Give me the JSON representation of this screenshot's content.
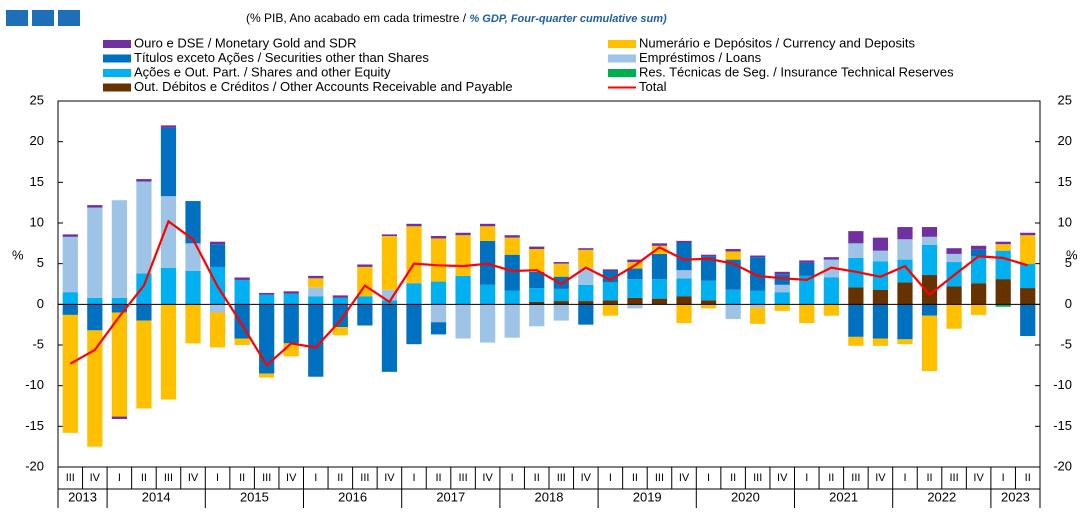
{
  "chart_data": {
    "type": "bar",
    "title": "(% PIB, Ano acabado em cada trimestre  / ",
    "subtitle": "% GDP, Four-quarter cumulative sum)",
    "ylabel": "%",
    "y2label": "%",
    "categories": [
      "III",
      "IV",
      "I",
      "II",
      "III",
      "IV",
      "I",
      "II",
      "III",
      "IV",
      "I",
      "II",
      "III",
      "IV",
      "I",
      "II",
      "III",
      "IV",
      "I",
      "II",
      "III",
      "IV",
      "I",
      "II",
      "III",
      "IV",
      "I",
      "II",
      "III",
      "IV",
      "I",
      "II",
      "III",
      "IV",
      "I",
      "II",
      "III",
      "IV",
      "I",
      "II"
    ],
    "year_groups": [
      {
        "label": "2013",
        "size": 2
      },
      {
        "label": "2014",
        "size": 4
      },
      {
        "label": "2015",
        "size": 4
      },
      {
        "label": "2016",
        "size": 4
      },
      {
        "label": "2017",
        "size": 4
      },
      {
        "label": "2018",
        "size": 4
      },
      {
        "label": "2019",
        "size": 4
      },
      {
        "label": "2020",
        "size": 4
      },
      {
        "label": "2021",
        "size": 4
      },
      {
        "label": "2022",
        "size": 4
      },
      {
        "label": "2023",
        "size": 2
      }
    ],
    "ylim": [
      -20,
      25
    ],
    "yticks": [
      -20,
      -15,
      -10,
      -5,
      0,
      5,
      10,
      15,
      20,
      25
    ],
    "y2lim": [
      -20,
      25
    ],
    "y2ticks": [
      -20,
      -15,
      -10,
      -5,
      0,
      5,
      10,
      15,
      20,
      25
    ],
    "grid": false,
    "series": [
      {
        "name": "Ouro e DSE / Monetary Gold and SDR",
        "color": "#7030a0",
        "values": [
          0.3,
          0.3,
          -0.3,
          0.3,
          0.3,
          0,
          0.3,
          0.3,
          0.2,
          0.3,
          0.3,
          0.3,
          0.3,
          0.2,
          0.3,
          0.3,
          0.3,
          0.3,
          0.3,
          0.3,
          0.2,
          0.2,
          0.2,
          0.3,
          0.3,
          0.2,
          0.2,
          0.3,
          0.2,
          0.3,
          0.3,
          0.3,
          1.5,
          1.6,
          1.5,
          1.2,
          0.7,
          0.5,
          0.3,
          0.3
        ]
      },
      {
        "name": "Numerário e Depósitos / Currency and Deposits",
        "color": "#ffc000",
        "values": [
          -14.5,
          -14.3,
          -12.8,
          -10.8,
          -11.7,
          -4.8,
          -4.3,
          -0.8,
          -0.5,
          -1.6,
          1.1,
          -1.0,
          3.6,
          6.6,
          7.0,
          5.3,
          5.0,
          1.8,
          2.1,
          2.8,
          1.6,
          2.2,
          -1.4,
          0.8,
          1.0,
          -2.3,
          -0.5,
          1.0,
          -2.0,
          -0.8,
          -2.3,
          -1.4,
          -1.1,
          -0.9,
          -0.6,
          -6.8,
          -3.0,
          -1.3,
          0.8,
          3.5
        ]
      },
      {
        "name": "Títulos exceto Ações / Securities other than Shares",
        "color": "#0070c0",
        "values": [
          -1.3,
          -3.2,
          -1.0,
          -2.0,
          8.4,
          5.2,
          2.8,
          -4.2,
          -8.5,
          -4.8,
          -8.9,
          -2.8,
          -2.6,
          -8.3,
          -4.9,
          -1.5,
          0,
          5.4,
          4.4,
          2.0,
          1.5,
          -2.5,
          1.4,
          1.3,
          3.1,
          3.4,
          3.0,
          3.7,
          4.1,
          1.3,
          1.6,
          0,
          -4.0,
          -4.2,
          -4.3,
          -1.4,
          0,
          0.8,
          0,
          -3.9
        ]
      },
      {
        "name": "Empréstimos / Loans",
        "color": "#9dc3e6",
        "values": [
          6.8,
          11.1,
          12.0,
          11.3,
          8.8,
          3.4,
          -1.0,
          0,
          0,
          0,
          1.1,
          0,
          0,
          1.3,
          0,
          -2.2,
          -4.2,
          -4.7,
          -4.1,
          -2.7,
          -2.0,
          2.1,
          0,
          -0.5,
          0,
          1.0,
          0,
          -1.8,
          -0.4,
          0.9,
          0,
          2.2,
          1.8,
          1.3,
          2.5,
          1.0,
          1.0,
          0,
          0,
          0
        ]
      },
      {
        "name": "Ações e Out. Part. / Shares and other Equity",
        "color": "#00b0f0",
        "values": [
          1.5,
          0.8,
          0.8,
          3.8,
          4.5,
          4.1,
          4.6,
          3.0,
          1.2,
          1.3,
          1.0,
          0.8,
          1.0,
          0.5,
          2.6,
          2.8,
          3.5,
          2.4,
          1.7,
          1.7,
          1.5,
          2.0,
          2.2,
          2.3,
          2.4,
          2.2,
          2.4,
          1.8,
          1.7,
          1.5,
          3.5,
          3.3,
          3.6,
          3.5,
          2.8,
          3.7,
          3.0,
          3.3,
          3.5,
          3.0
        ]
      },
      {
        "name": "Res. Técnicas de Seg. / Insurance Technical Reserves",
        "color": "#00b050",
        "values": [
          0,
          0,
          0,
          0,
          0,
          0,
          0,
          0,
          0,
          0,
          0,
          0,
          0,
          0,
          0,
          0,
          0,
          0,
          0,
          0,
          0,
          0,
          0,
          0,
          0,
          0,
          0,
          0,
          0,
          0,
          0,
          0,
          0,
          0,
          0,
          0,
          0,
          0,
          -0.3,
          0
        ]
      },
      {
        "name": "Out. Débitos e Créditos / Other Accounts Receivable and Payable",
        "color": "#663300",
        "values": [
          0,
          0,
          0,
          0,
          0,
          0,
          0,
          0,
          0,
          0,
          0,
          0,
          0,
          0,
          0,
          0,
          0,
          0,
          0,
          0.3,
          0.4,
          0.4,
          0.5,
          0.8,
          0.7,
          1.0,
          0.5,
          0,
          0,
          0,
          0,
          0,
          2.1,
          1.8,
          2.7,
          3.6,
          2.2,
          2.6,
          3.1,
          2.0
        ]
      },
      {
        "name": "Total",
        "color": "#ff0000",
        "kind": "line",
        "values": [
          -7.3,
          -5.6,
          -1.5,
          2.3,
          10.2,
          8.0,
          2.2,
          -2.5,
          -7.5,
          -4.8,
          -5.3,
          -2.0,
          2.3,
          0.3,
          5.0,
          4.8,
          4.7,
          5.0,
          4.1,
          4.2,
          2.5,
          4.5,
          3.0,
          4.8,
          7.0,
          5.5,
          5.6,
          5.0,
          3.5,
          3.2,
          3.0,
          4.5,
          4.0,
          3.4,
          4.7,
          1.2,
          3.6,
          5.9,
          5.7,
          4.8
        ]
      }
    ]
  }
}
